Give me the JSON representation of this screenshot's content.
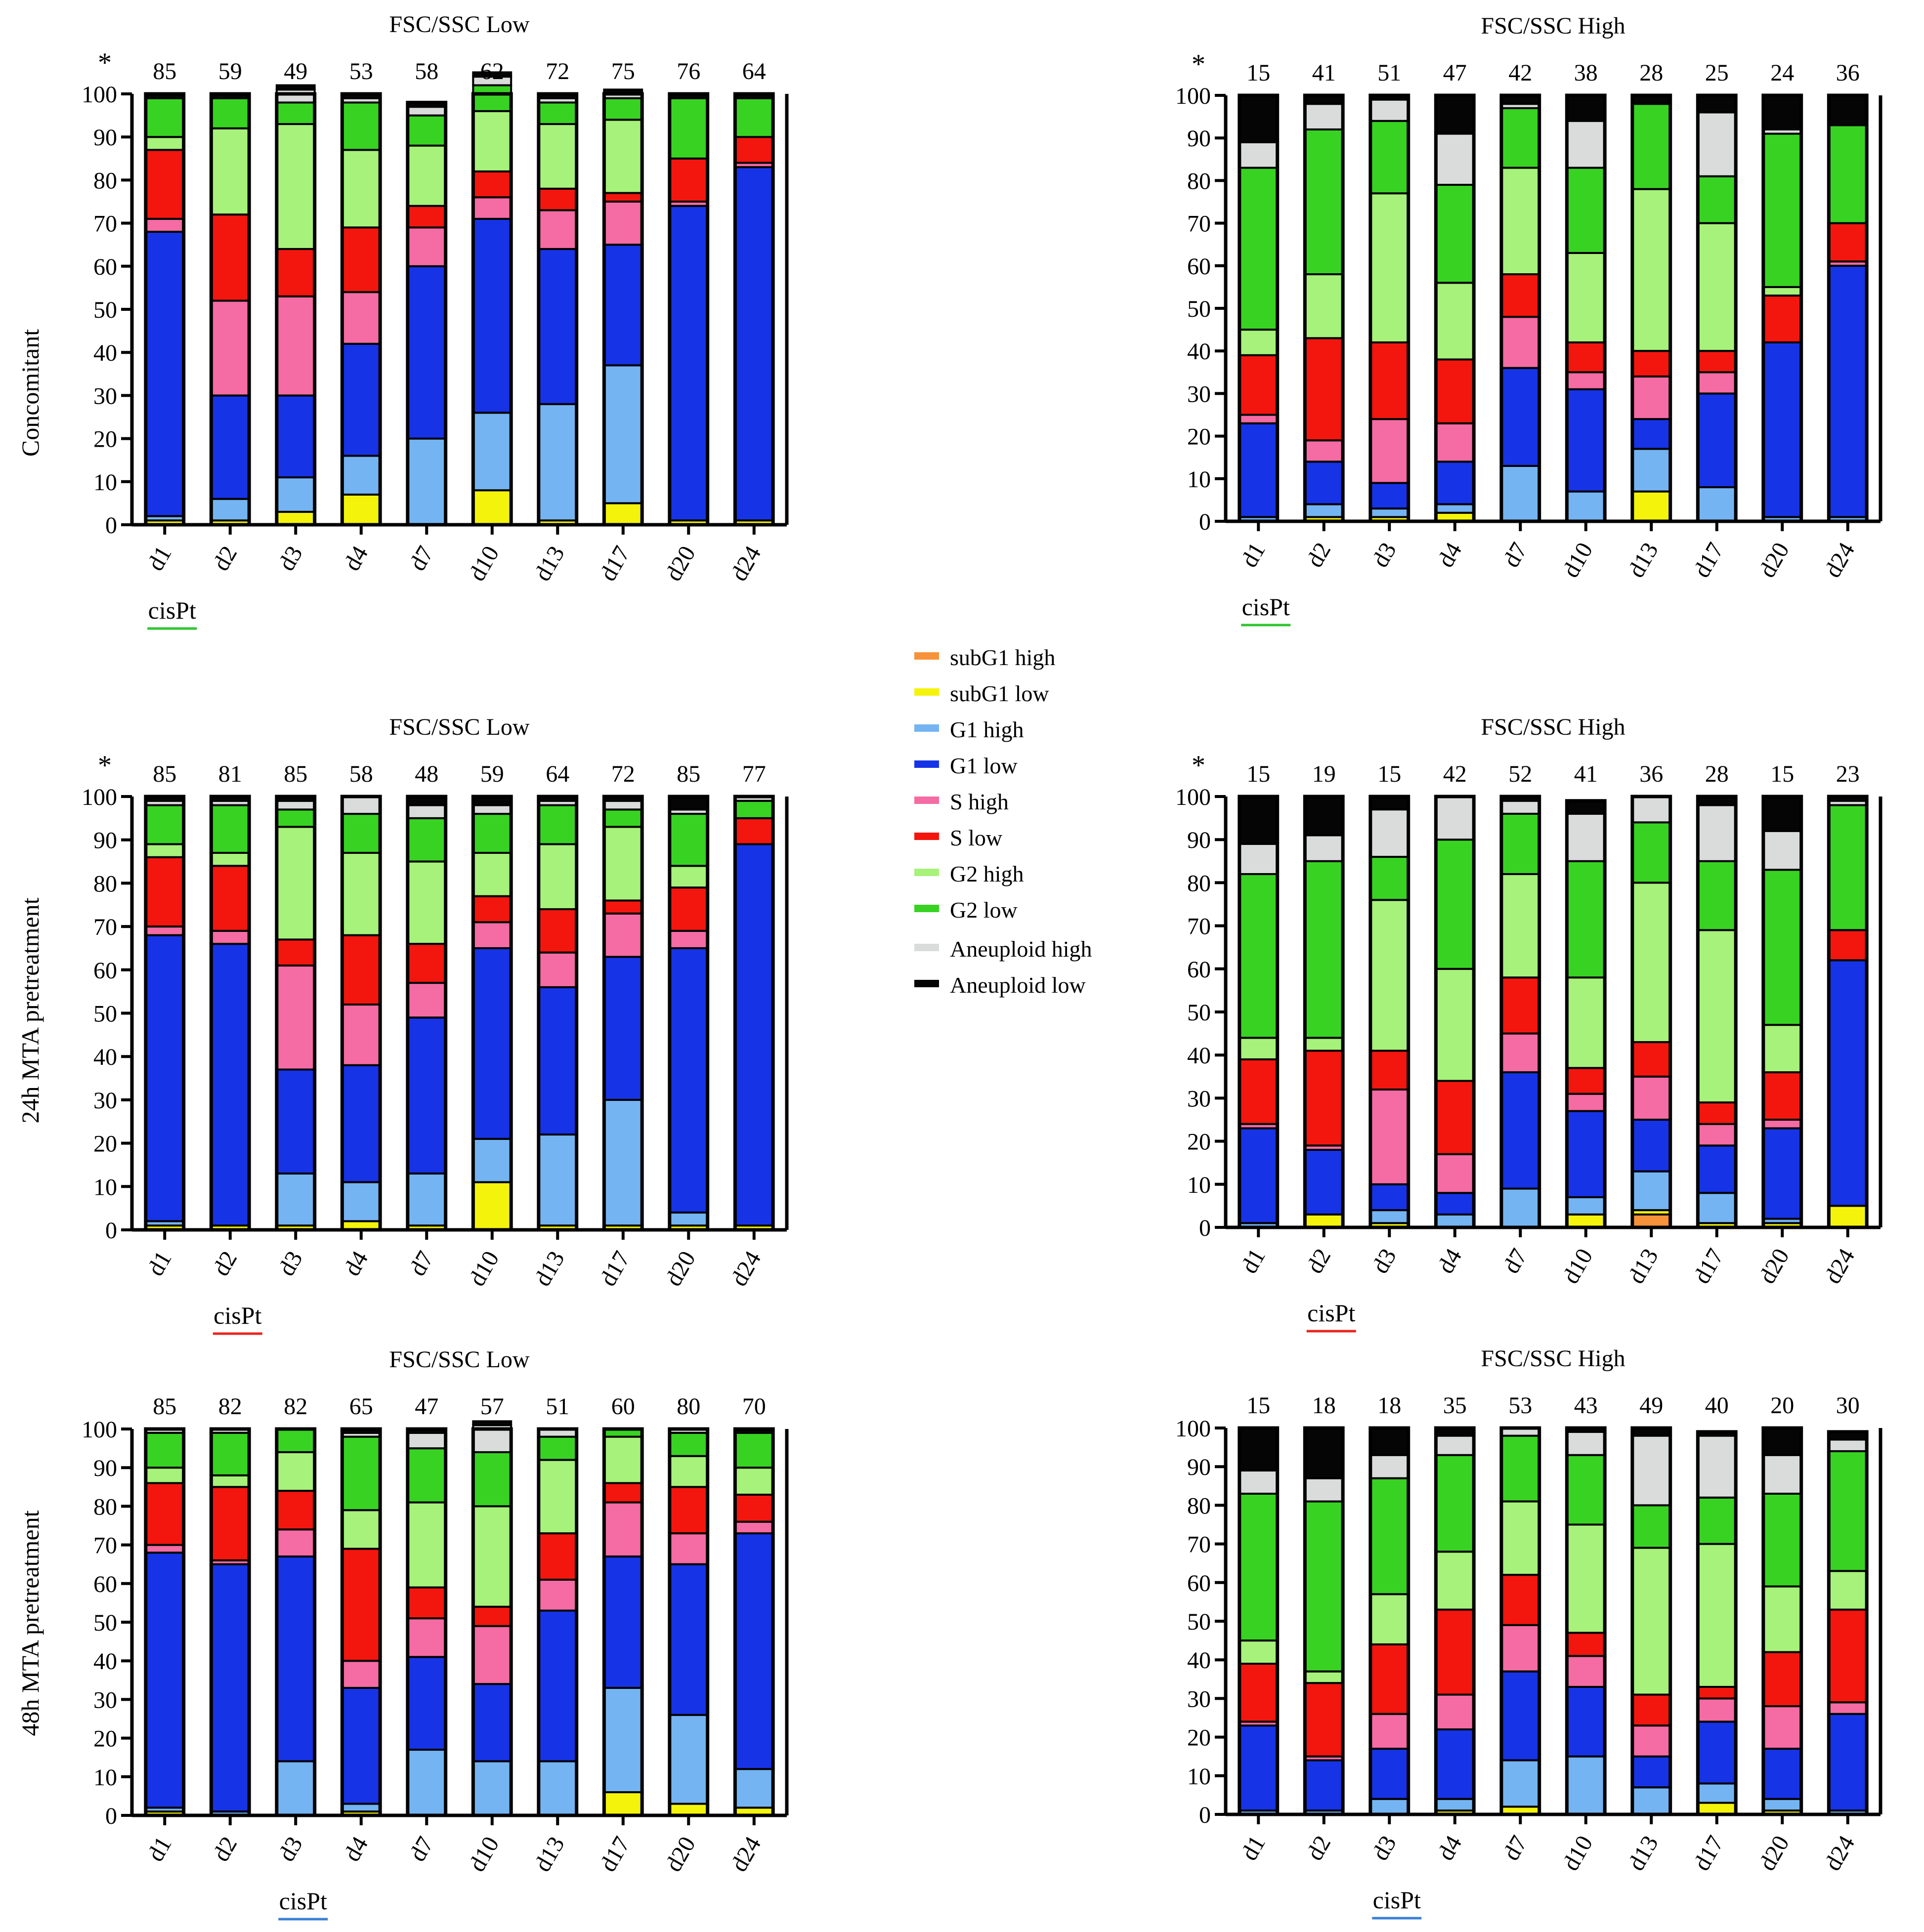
{
  "colors": {
    "subG1 high": "#F7923A",
    "subG1 low": "#F4F30C",
    "G1 high": "#74B4F2",
    "G1 low": "#1733E6",
    "S high": "#F56BA3",
    "S low": "#F2160E",
    "G2 high": "#A7F27A",
    "G2 low": "#38D322",
    "Aneuploid high": "#DADCDC",
    "Aneuploid low": "#050505"
  },
  "legend": [
    "subG1 high",
    "subG1 low",
    "G1 high",
    "G1 low",
    "S high",
    "S low",
    "G2 high",
    "G2 low",
    "Aneuploid high",
    "Aneuploid low"
  ],
  "row_labels": [
    "Concomitant",
    "24h MTA pretreatment",
    "48h MTA pretreatment"
  ],
  "cispt_label": "cisPt",
  "star": "*",
  "chart_data": [
    {
      "type": "stacked_bar",
      "title": "FSC/SSC Low",
      "ylabel": "Concomitant",
      "ylim": [
        0,
        100
      ],
      "yticks": [
        "0",
        "10",
        "20",
        "30",
        "40",
        "50",
        "60",
        "70",
        "80",
        "90",
        "100"
      ],
      "categories": [
        "d1",
        "d2",
        "d3",
        "d4",
        "d7",
        "d10",
        "d13",
        "d17",
        "d20",
        "d24"
      ],
      "counts": [
        "85",
        "59",
        "49",
        "53",
        "58",
        "62",
        "72",
        "75",
        "76",
        "64"
      ],
      "star": true,
      "cispt_under": "d1",
      "cispt_color": "#2FC52F",
      "series": [
        {
          "name": "subG1 high",
          "values": [
            0,
            0,
            0,
            0,
            0,
            0,
            0,
            0,
            0,
            0
          ]
        },
        {
          "name": "subG1 low",
          "values": [
            1,
            1,
            3,
            7,
            0,
            8,
            1,
            5,
            1,
            1
          ]
        },
        {
          "name": "G1 high",
          "values": [
            1,
            5,
            8,
            9,
            20,
            18,
            27,
            32,
            0,
            0
          ]
        },
        {
          "name": "G1 low",
          "values": [
            66,
            24,
            19,
            26,
            40,
            45,
            36,
            28,
            73,
            82
          ]
        },
        {
          "name": "S high",
          "values": [
            3,
            22,
            23,
            12,
            9,
            5,
            9,
            10,
            1,
            1
          ]
        },
        {
          "name": "S low",
          "values": [
            16,
            20,
            11,
            15,
            5,
            6,
            5,
            2,
            10,
            6
          ]
        },
        {
          "name": "G2 high",
          "values": [
            3,
            20,
            29,
            18,
            14,
            14,
            15,
            17,
            0,
            0
          ]
        },
        {
          "name": "G2 low",
          "values": [
            9,
            7,
            5,
            11,
            7,
            6,
            5,
            5,
            14,
            9
          ]
        },
        {
          "name": "Aneuploid high",
          "values": [
            0,
            0,
            3,
            1,
            2,
            2,
            1,
            1,
            0,
            0
          ]
        },
        {
          "name": "Aneuploid low",
          "values": [
            1,
            1,
            1,
            1,
            1,
            1,
            1,
            1,
            1,
            1
          ]
        }
      ]
    },
    {
      "type": "stacked_bar",
      "title": "FSC/SSC High",
      "ylim": [
        0,
        100
      ],
      "yticks": [
        "0",
        "10",
        "20",
        "30",
        "40",
        "50",
        "60",
        "70",
        "80",
        "90",
        "100"
      ],
      "categories": [
        "d1",
        "d2",
        "d3",
        "d4",
        "d7",
        "d10",
        "d13",
        "d17",
        "d20",
        "d24"
      ],
      "counts": [
        "15",
        "41",
        "51",
        "47",
        "42",
        "38",
        "28",
        "25",
        "24",
        "36"
      ],
      "star": true,
      "cispt_under": "d1",
      "cispt_color": "#2FC52F",
      "series": [
        {
          "name": "subG1 high",
          "values": [
            0,
            0,
            0,
            0,
            0,
            0,
            0,
            0,
            0,
            0
          ]
        },
        {
          "name": "subG1 low",
          "values": [
            0,
            1,
            1,
            2,
            0,
            0,
            7,
            0,
            0,
            0
          ]
        },
        {
          "name": "G1 high",
          "values": [
            1,
            3,
            2,
            2,
            13,
            7,
            10,
            8,
            1,
            1
          ]
        },
        {
          "name": "G1 low",
          "values": [
            22,
            10,
            6,
            10,
            23,
            24,
            7,
            22,
            41,
            59
          ]
        },
        {
          "name": "S high",
          "values": [
            2,
            5,
            15,
            9,
            12,
            4,
            10,
            5,
            0,
            1
          ]
        },
        {
          "name": "S low",
          "values": [
            14,
            24,
            18,
            15,
            10,
            7,
            6,
            5,
            11,
            9
          ]
        },
        {
          "name": "G2 high",
          "values": [
            6,
            15,
            35,
            18,
            25,
            21,
            38,
            30,
            2,
            0
          ]
        },
        {
          "name": "G2 low",
          "values": [
            38,
            34,
            17,
            23,
            14,
            20,
            20,
            11,
            36,
            23
          ]
        },
        {
          "name": "Aneuploid high",
          "values": [
            6,
            6,
            5,
            12,
            1,
            11,
            0,
            15,
            1,
            0
          ]
        },
        {
          "name": "Aneuploid low",
          "values": [
            11,
            2,
            1,
            9,
            2,
            6,
            2,
            4,
            8,
            7
          ]
        }
      ]
    },
    {
      "type": "stacked_bar",
      "title": "FSC/SSC Low",
      "ylabel": "24h MTA pretreatment",
      "ylim": [
        0,
        100
      ],
      "yticks": [
        "0",
        "10",
        "20",
        "30",
        "40",
        "50",
        "60",
        "70",
        "80",
        "90",
        "100"
      ],
      "categories": [
        "d1",
        "d2",
        "d3",
        "d4",
        "d7",
        "d10",
        "d13",
        "d17",
        "d20",
        "d24"
      ],
      "counts": [
        "85",
        "81",
        "85",
        "58",
        "48",
        "59",
        "64",
        "72",
        "85",
        "77"
      ],
      "star": true,
      "cispt_under": "d2",
      "cispt_color": "#E8251E",
      "series": [
        {
          "name": "subG1 high",
          "values": [
            0,
            0,
            0,
            0,
            0,
            0,
            0,
            0,
            0,
            0
          ]
        },
        {
          "name": "subG1 low",
          "values": [
            1,
            1,
            1,
            2,
            1,
            11,
            1,
            1,
            1,
            1
          ]
        },
        {
          "name": "G1 high",
          "values": [
            1,
            0,
            12,
            9,
            12,
            10,
            21,
            29,
            3,
            0
          ]
        },
        {
          "name": "G1 low",
          "values": [
            66,
            65,
            24,
            27,
            36,
            44,
            34,
            33,
            61,
            88
          ]
        },
        {
          "name": "S high",
          "values": [
            2,
            3,
            24,
            14,
            8,
            6,
            8,
            10,
            4,
            0
          ]
        },
        {
          "name": "S low",
          "values": [
            16,
            15,
            6,
            16,
            9,
            6,
            10,
            3,
            10,
            6
          ]
        },
        {
          "name": "G2 high",
          "values": [
            3,
            3,
            26,
            19,
            19,
            10,
            15,
            17,
            5,
            0
          ]
        },
        {
          "name": "G2 low",
          "values": [
            9,
            11,
            4,
            9,
            10,
            9,
            9,
            4,
            12,
            4
          ]
        },
        {
          "name": "Aneuploid high",
          "values": [
            1,
            1,
            2,
            4,
            3,
            2,
            1,
            2,
            1,
            1
          ]
        },
        {
          "name": "Aneuploid low",
          "values": [
            1,
            1,
            1,
            0,
            2,
            2,
            1,
            1,
            3,
            0
          ]
        }
      ]
    },
    {
      "type": "stacked_bar",
      "title": "FSC/SSC High",
      "ylim": [
        0,
        100
      ],
      "yticks": [
        "0",
        "10",
        "20",
        "30",
        "40",
        "50",
        "60",
        "70",
        "80",
        "90",
        "100"
      ],
      "categories": [
        "d1",
        "d2",
        "d3",
        "d4",
        "d7",
        "d10",
        "d13",
        "d17",
        "d20",
        "d24"
      ],
      "counts": [
        "15",
        "19",
        "15",
        "42",
        "52",
        "41",
        "36",
        "28",
        "15",
        "23"
      ],
      "star": true,
      "cispt_under": "d2",
      "cispt_color": "#E8251E",
      "series": [
        {
          "name": "subG1 high",
          "values": [
            0,
            0,
            0,
            0,
            0,
            0,
            3,
            0,
            0,
            0
          ]
        },
        {
          "name": "subG1 low",
          "values": [
            0,
            3,
            1,
            0,
            0,
            3,
            1,
            1,
            1,
            5
          ]
        },
        {
          "name": "G1 high",
          "values": [
            1,
            0,
            3,
            3,
            9,
            4,
            9,
            7,
            1,
            0
          ]
        },
        {
          "name": "G1 low",
          "values": [
            22,
            15,
            6,
            5,
            27,
            20,
            12,
            11,
            21,
            57
          ]
        },
        {
          "name": "S high",
          "values": [
            1,
            1,
            22,
            9,
            9,
            4,
            10,
            5,
            2,
            0
          ]
        },
        {
          "name": "S low",
          "values": [
            15,
            22,
            9,
            17,
            13,
            6,
            8,
            5,
            11,
            7
          ]
        },
        {
          "name": "G2 high",
          "values": [
            5,
            3,
            35,
            26,
            24,
            21,
            37,
            40,
            11,
            0
          ]
        },
        {
          "name": "G2 low",
          "values": [
            38,
            41,
            10,
            30,
            14,
            27,
            14,
            16,
            36,
            29
          ]
        },
        {
          "name": "Aneuploid high",
          "values": [
            7,
            6,
            11,
            10,
            3,
            11,
            6,
            13,
            9,
            1
          ]
        },
        {
          "name": "Aneuploid low",
          "values": [
            11,
            9,
            3,
            0,
            1,
            3,
            0,
            2,
            8,
            1
          ]
        }
      ]
    },
    {
      "type": "stacked_bar",
      "title": "FSC/SSC Low",
      "ylabel": "48h MTA pretreatment",
      "ylim": [
        0,
        100
      ],
      "yticks": [
        "0",
        "10",
        "20",
        "30",
        "40",
        "50",
        "60",
        "70",
        "80",
        "90",
        "100"
      ],
      "categories": [
        "d1",
        "d2",
        "d3",
        "d4",
        "d7",
        "d10",
        "d13",
        "d17",
        "d20",
        "d24"
      ],
      "counts": [
        "85",
        "82",
        "82",
        "65",
        "47",
        "57",
        "51",
        "60",
        "80",
        "70"
      ],
      "star": false,
      "cispt_under": "d3",
      "cispt_color": "#3A7FD6",
      "series": [
        {
          "name": "subG1 high",
          "values": [
            0,
            0,
            0,
            0,
            0,
            0,
            0,
            0,
            0,
            0
          ]
        },
        {
          "name": "subG1 low",
          "values": [
            1,
            0,
            0,
            1,
            0,
            0,
            0,
            6,
            3,
            2
          ]
        },
        {
          "name": "G1 high",
          "values": [
            1,
            1,
            14,
            2,
            17,
            14,
            14,
            27,
            23,
            10
          ]
        },
        {
          "name": "G1 low",
          "values": [
            66,
            64,
            53,
            30,
            24,
            20,
            39,
            34,
            39,
            61
          ]
        },
        {
          "name": "S high",
          "values": [
            2,
            1,
            7,
            7,
            10,
            15,
            8,
            14,
            8,
            3
          ]
        },
        {
          "name": "S low",
          "values": [
            16,
            19,
            10,
            29,
            8,
            5,
            12,
            5,
            12,
            7
          ]
        },
        {
          "name": "G2 high",
          "values": [
            4,
            3,
            10,
            10,
            22,
            26,
            19,
            12,
            8,
            7
          ]
        },
        {
          "name": "G2 low",
          "values": [
            9,
            11,
            6,
            19,
            14,
            14,
            6,
            2,
            6,
            9
          ]
        },
        {
          "name": "Aneuploid high",
          "values": [
            1,
            1,
            0,
            1,
            4,
            7,
            2,
            0,
            1,
            0
          ]
        },
        {
          "name": "Aneuploid low",
          "values": [
            0,
            0,
            0,
            1,
            1,
            1,
            0,
            0,
            0,
            1
          ]
        }
      ]
    },
    {
      "type": "stacked_bar",
      "title": "FSC/SSC High",
      "ylim": [
        0,
        100
      ],
      "yticks": [
        "0",
        "10",
        "20",
        "30",
        "40",
        "50",
        "60",
        "70",
        "80",
        "90",
        "100"
      ],
      "categories": [
        "d1",
        "d2",
        "d3",
        "d4",
        "d7",
        "d10",
        "d13",
        "d17",
        "d20",
        "d24"
      ],
      "counts": [
        "15",
        "18",
        "18",
        "35",
        "53",
        "43",
        "49",
        "40",
        "20",
        "30"
      ],
      "star": false,
      "cispt_under": "d3",
      "cispt_color": "#3A7FD6",
      "series": [
        {
          "name": "subG1 high",
          "values": [
            0,
            0,
            0,
            0,
            0,
            0,
            0,
            0,
            0,
            0
          ]
        },
        {
          "name": "subG1 low",
          "values": [
            0,
            0,
            0,
            1,
            2,
            0,
            0,
            3,
            1,
            0
          ]
        },
        {
          "name": "G1 high",
          "values": [
            1,
            1,
            4,
            3,
            12,
            15,
            7,
            5,
            3,
            1
          ]
        },
        {
          "name": "G1 low",
          "values": [
            22,
            13,
            13,
            18,
            23,
            18,
            8,
            16,
            13,
            25
          ]
        },
        {
          "name": "S high",
          "values": [
            1,
            1,
            9,
            9,
            12,
            8,
            8,
            6,
            11,
            3
          ]
        },
        {
          "name": "S low",
          "values": [
            15,
            19,
            18,
            22,
            13,
            6,
            8,
            3,
            14,
            24
          ]
        },
        {
          "name": "G2 high",
          "values": [
            6,
            3,
            13,
            15,
            19,
            28,
            38,
            37,
            17,
            10
          ]
        },
        {
          "name": "G2 low",
          "values": [
            38,
            44,
            30,
            25,
            17,
            18,
            11,
            12,
            24,
            31
          ]
        },
        {
          "name": "Aneuploid high",
          "values": [
            6,
            6,
            6,
            5,
            2,
            6,
            18,
            16,
            10,
            3
          ]
        },
        {
          "name": "Aneuploid low",
          "values": [
            11,
            13,
            7,
            2,
            0,
            1,
            2,
            1,
            7,
            2
          ]
        }
      ]
    }
  ]
}
